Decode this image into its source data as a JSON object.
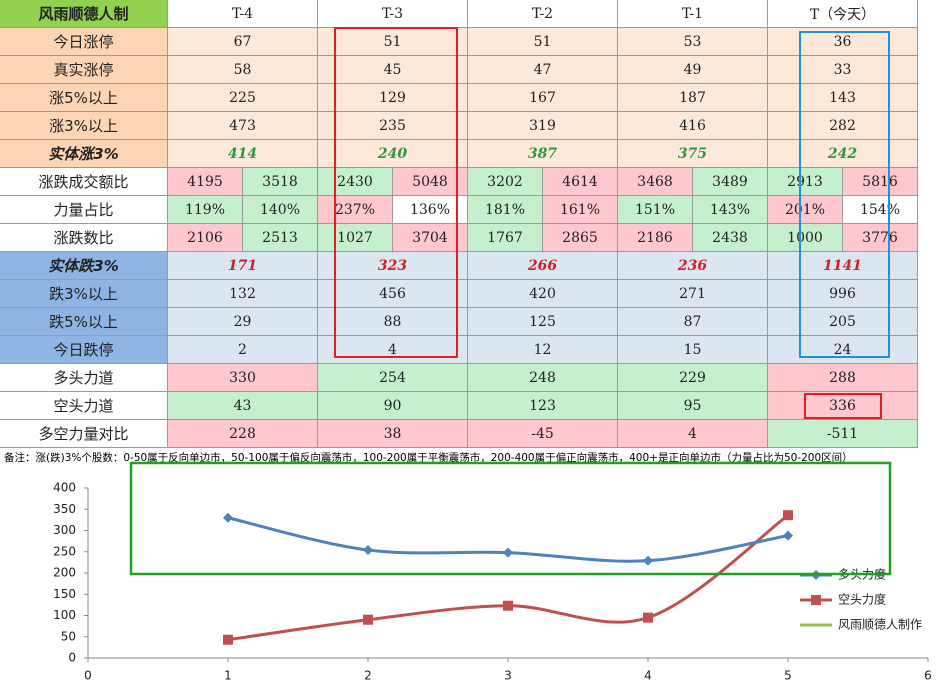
{
  "table": {
    "header": [
      "风雨顺德人制",
      "T-4",
      "T-3",
      "T-2",
      "T-1",
      "T（今天）"
    ],
    "rows": [
      {
        "label": "今日涨停",
        "cells": [
          67,
          51,
          51,
          53,
          36
        ]
      },
      {
        "label": "真实涨停",
        "cells": [
          58,
          45,
          47,
          49,
          33
        ]
      },
      {
        "label": "涨5%以上",
        "cells": [
          225,
          129,
          167,
          187,
          143
        ]
      },
      {
        "label": "涨3%以上",
        "cells": [
          473,
          235,
          319,
          416,
          282
        ]
      },
      {
        "label": "实体涨3%",
        "cells": [
          414,
          240,
          387,
          375,
          242
        ]
      },
      {
        "label": "涨跌成交额比",
        "cells": [
          4195,
          3518,
          2430,
          5048,
          3202,
          4614,
          3468,
          3489,
          2913,
          5816
        ]
      },
      {
        "label": "力量占比",
        "cells": [
          "119%",
          "140%",
          "237%",
          "136%",
          "181%",
          "161%",
          "151%",
          "143%",
          "201%",
          "154%"
        ]
      },
      {
        "label": "涨跌数比",
        "cells": [
          2106,
          2513,
          1027,
          3704,
          1767,
          2865,
          2186,
          2438,
          1000,
          3776
        ]
      },
      {
        "label": "实体跌3%",
        "cells": [
          171,
          323,
          266,
          236,
          1141
        ]
      },
      {
        "label": "跌3%以上",
        "cells": [
          132,
          456,
          420,
          271,
          996
        ]
      },
      {
        "label": "跌5%以上",
        "cells": [
          29,
          88,
          125,
          87,
          205
        ]
      },
      {
        "label": "今日跌停",
        "cells": [
          2,
          4,
          12,
          15,
          24
        ]
      },
      {
        "label": "多头力道",
        "cells": [
          330,
          254,
          248,
          229,
          288
        ]
      },
      {
        "label": "空头力道",
        "cells": [
          43,
          90,
          123,
          95,
          336
        ]
      },
      {
        "label": "多空力量对比",
        "cells": [
          228,
          38,
          -45,
          4,
          -511
        ]
      }
    ],
    "cell_colors": [
      [
        "#fcd5b4",
        "#fde9d9",
        "#fde9d9",
        "#fde9d9",
        "#fde9d9",
        "#fde9d9"
      ],
      [
        "#fcd5b4",
        "#fde9d9",
        "#fde9d9",
        "#fde9d9",
        "#fde9d9",
        "#fde9d9"
      ],
      [
        "#fcd5b4",
        "#fde9d9",
        "#fde9d9",
        "#fde9d9",
        "#fde9d9",
        "#fde9d9"
      ],
      [
        "#fcd5b4",
        "#fde9d9",
        "#fde9d9",
        "#fde9d9",
        "#fde9d9",
        "#fde9d9"
      ],
      [
        "#fcd5b4",
        "#fde9d9",
        "#fde9d9",
        "#fde9d9",
        "#fde9d9",
        "#fde9d9"
      ],
      [
        "#ffffff",
        "#ffc7ce",
        "#c6efce",
        "#c6efce",
        "#ffc7ce",
        "#c6efce",
        "#ffc7ce",
        "#ffc7ce",
        "#c6efce",
        "#c6efce",
        "#ffc7ce"
      ],
      [
        "#ffffff",
        "#c6efce",
        "#c6efce",
        "#ffc7ce",
        "#ffffff",
        "#c6efce",
        "#ffc7ce",
        "#c6efce",
        "#c6efce",
        "#ffc7ce",
        "#ffffff"
      ],
      [
        "#ffffff",
        "#ffc7ce",
        "#c6efce",
        "#c6efce",
        "#ffc7ce",
        "#c6efce",
        "#ffc7ce",
        "#ffc7ce",
        "#c6efce",
        "#c6efce",
        "#ffc7ce"
      ],
      [
        "#8db4e2",
        "#dce6f1",
        "#dce6f1",
        "#dce6f1",
        "#dce6f1",
        "#dce6f1"
      ],
      [
        "#8db4e2",
        "#dce6f1",
        "#dce6f1",
        "#dce6f1",
        "#dce6f1",
        "#dce6f1"
      ],
      [
        "#8db4e2",
        "#dce6f1",
        "#dce6f1",
        "#dce6f1",
        "#dce6f1",
        "#dce6f1"
      ],
      [
        "#8db4e2",
        "#dce6f1",
        "#dce6f1",
        "#dce6f1",
        "#dce6f1",
        "#dce6f1"
      ],
      [
        "#ffffff",
        "#ffc7ce",
        "#c6efce",
        "#c6efce",
        "#c6efce",
        "#ffc7ce"
      ],
      [
        "#ffffff",
        "#c6efce",
        "#c6efce",
        "#c6efce",
        "#c6efce",
        "#ffc7ce"
      ],
      [
        "#ffffff",
        "#ffc7ce",
        "#ffc7ce",
        "#ffc7ce",
        "#ffc7ce",
        "#c6efce"
      ]
    ],
    "note": "备注：涨(跌)3%个股数：0-50属于反向单边市，50-100属于偏反向震荡市，100-200属于平衡震荡市，200-400属于偏正向震荡市，400+是正向单边市（力量占比为50-200区间）"
  },
  "chart_data": {
    "type": "line",
    "x": [
      1,
      2,
      3,
      4,
      5
    ],
    "series": [
      {
        "name": "多头力度",
        "color": "#4f81bd",
        "values": [
          330,
          254,
          248,
          229,
          288
        ]
      },
      {
        "name": "空头力度",
        "color": "#c0504d",
        "values": [
          43,
          90,
          123,
          95,
          336
        ]
      },
      {
        "name": "风雨顺德人制作",
        "color": "#9bbb59"
      }
    ],
    "xlim": [
      0,
      6
    ],
    "xticks": [
      0,
      1,
      2,
      3,
      4,
      5,
      6
    ],
    "ylim": [
      0,
      400
    ],
    "yticks": [
      0,
      50,
      100,
      150,
      200,
      250,
      300,
      350,
      400
    ]
  }
}
